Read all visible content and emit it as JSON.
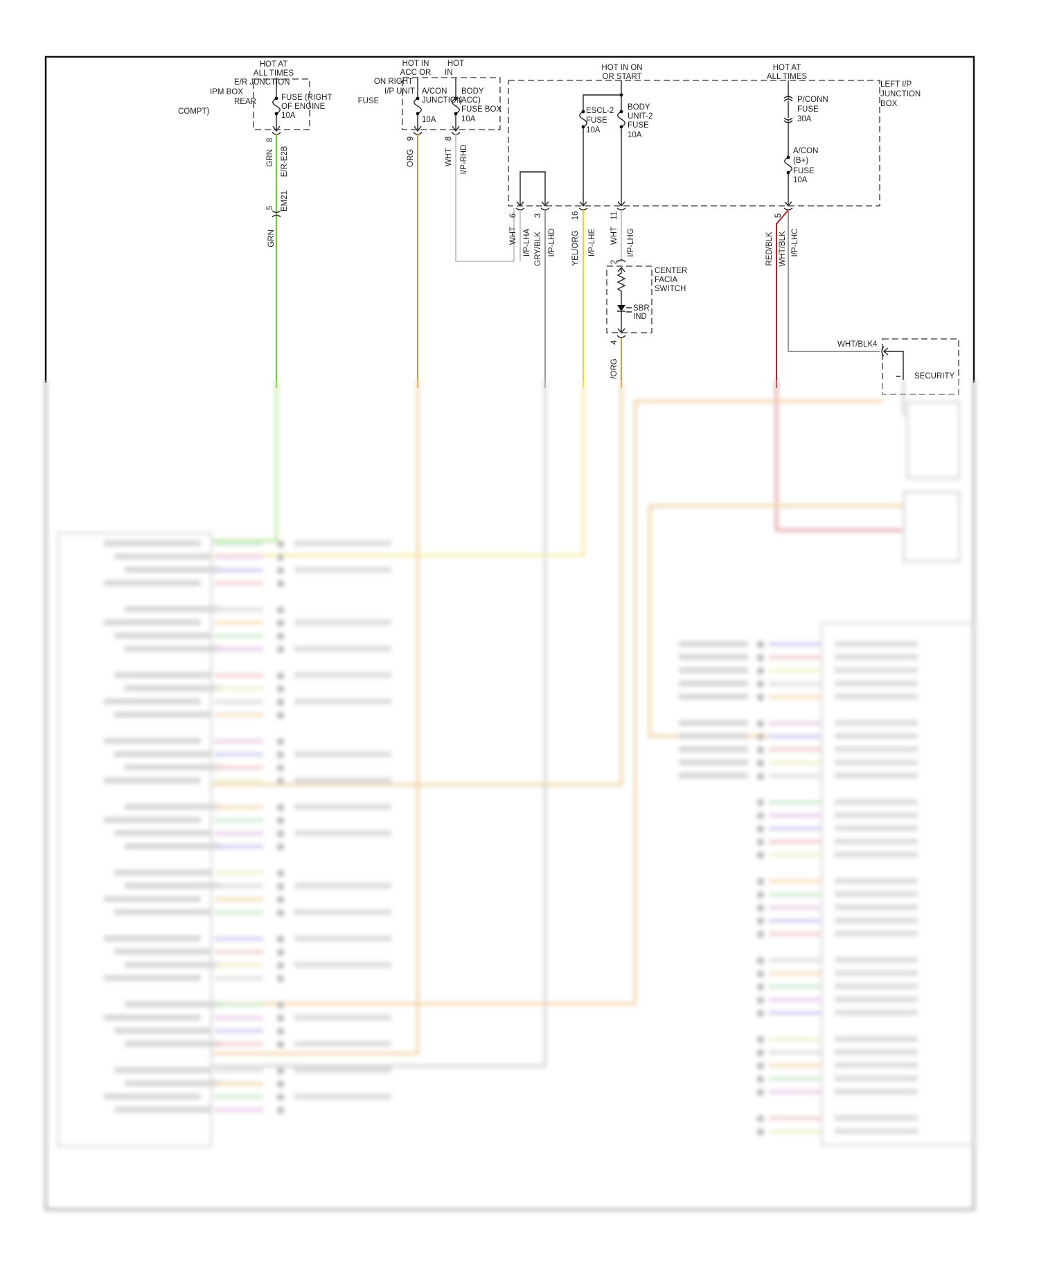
{
  "diagram": {
    "wire_colors": {
      "GRN": "#66cc22",
      "ORG": "#e0952a",
      "WHT": "#c8c8c8",
      "GRY_BLK": "#9a9a9a",
      "YEL_ORG": "#f0d020",
      "RED_BLK": "#b82020",
      "WHT_BLK": "#999999",
      "FACIA_ORG": "#d49a2a"
    },
    "er_fuse": {
      "hot": [
        "HOT AT",
        "ALL TIMES"
      ],
      "location": [
        "E/R JUNCTION",
        "IPM BOX",
        "REAR",
        "COMPT)"
      ],
      "fuse": [
        "FUSE (RIGHT",
        "OF ENGINE",
        "10A"
      ],
      "pin": "8",
      "color": "GRN",
      "connector": "E/R-E2B",
      "inline_pin": "5",
      "inline_connector": "EM21",
      "color2": "GRN"
    },
    "rhd_box": {
      "hot_left": [
        "HOT IN",
        "ACC OR"
      ],
      "hot_right": [
        "HOT",
        "IN"
      ],
      "location": [
        "ON RIGHT",
        "I/P UNIT",
        "FUSE"
      ],
      "fuse1": [
        "A/CON",
        "JUNCTION",
        "10A"
      ],
      "fuse2": [
        "BODY",
        "(ACC)",
        "FUSE BOX",
        "10A"
      ],
      "pin1": "9",
      "color1": "ORG",
      "pin2": "8",
      "color2": "WHT",
      "connector": "I/P-RHD"
    },
    "left_ip_box": {
      "title": [
        "LEFT I/P",
        "JUNCTION",
        "BOX"
      ],
      "hot_on": [
        "HOT IN ON",
        "OR START"
      ],
      "hot_all": [
        "HOT AT",
        "ALL TIMES"
      ],
      "escl_fuse": [
        "ESCL-2",
        "FUSE",
        "10A"
      ],
      "body_fuse": [
        "BODY",
        "UNIT-2",
        "FUSE",
        "10A"
      ],
      "pconn_fuse": [
        "P/CONN",
        "FUSE",
        "30A"
      ],
      "acon_fuse": [
        "A/CON",
        "(B+)",
        "FUSE",
        "10A"
      ],
      "pins": [
        {
          "pin": "6",
          "color": "WHT",
          "connector": "I/P-LHA"
        },
        {
          "pin": "3",
          "color": "GRY/BLK",
          "connector": "I/P-LHD"
        },
        {
          "pin": "16",
          "color": "YEL/ORG",
          "connector": "I/P-LHE"
        },
        {
          "pin": "11",
          "color": "WHT",
          "connector": "I/P-LHG"
        },
        {
          "pin": "5",
          "color": "RED/BLK",
          "color_b": "WHT/BLK",
          "connector": "I/P-LHC"
        }
      ]
    },
    "center_facia": {
      "title": [
        "CENTER",
        "FACIA",
        "SWITCH"
      ],
      "indicator": [
        "SBR",
        "IND"
      ],
      "pin_top": "2",
      "pin_bottom": "4",
      "color": "/ORG"
    },
    "security": {
      "label": "SECURITY",
      "pin": "4",
      "wire": "WHT/BLK"
    }
  }
}
